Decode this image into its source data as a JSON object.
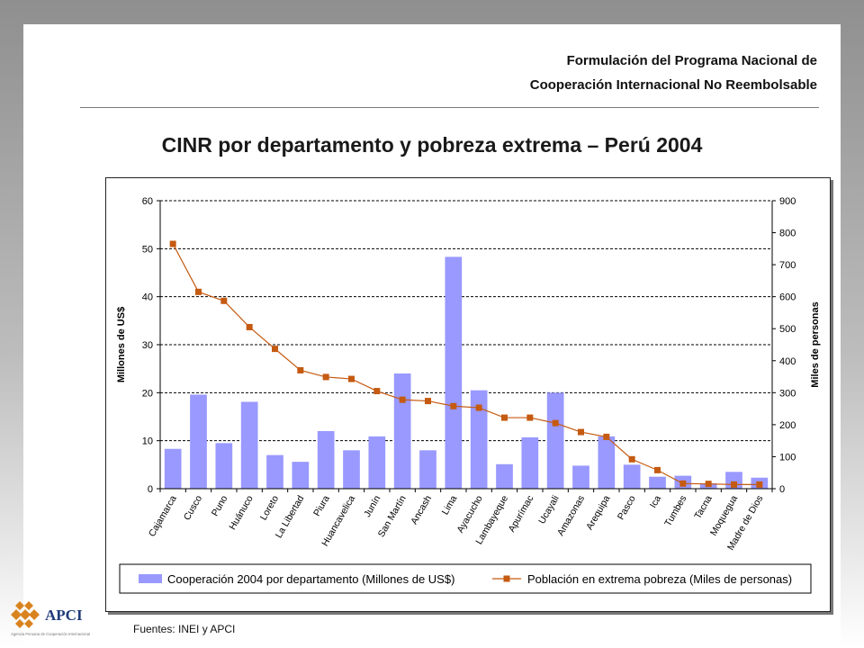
{
  "header": {
    "line1": "Formulación del Programa Nacional de",
    "line2": "Cooperación Internacional No Reembolsable"
  },
  "title": "CINR por departamento y pobreza extrema – Perú 2004",
  "footer": {
    "source": "Fuentes: INEI y APCI"
  },
  "logo": {
    "text": "APCI",
    "subtitle": "Agencia Peruana de Cooperación Internacional"
  },
  "colors": {
    "bar": "#9999ff",
    "line": "#c55a11",
    "marker": "#c55a11"
  },
  "chart_data": {
    "type": "bar",
    "ylabel": "Millones de US$",
    "y2label": "Miles de personas",
    "ylim": [
      0,
      60
    ],
    "y2lim": [
      0,
      900
    ],
    "yticks": [
      "0",
      "10",
      "20",
      "30",
      "40",
      "50",
      "60"
    ],
    "y2ticks": [
      "0",
      "100",
      "200",
      "300",
      "400",
      "500",
      "600",
      "700",
      "800",
      "900"
    ],
    "grid": "horizontal dashed",
    "legend_position": "bottom",
    "categories": [
      "Cajamarca",
      "Cusco",
      "Puno",
      "Huánuco",
      "Loreto",
      "La Libertad",
      "Piura",
      "Huancavelica",
      "Junín",
      "San Martín",
      "Ancash",
      "Lima",
      "Ayacucho",
      "Lambayeque",
      "Apurímac",
      "Ucayali",
      "Amazonas",
      "Arequipa",
      "Pasco",
      "Ica",
      "Tumbes",
      "Tacna",
      "Moquegua",
      "Madre de Dios"
    ],
    "series": [
      {
        "name": "Cooperación 2004 por departamento (Millones de US$)",
        "type": "bar",
        "axis": "left",
        "values": [
          8.3,
          19.6,
          9.5,
          18.1,
          7.0,
          5.6,
          12.0,
          8.0,
          10.9,
          24.0,
          8.0,
          48.3,
          20.5,
          5.1,
          10.7,
          20.0,
          4.8,
          10.9,
          5.0,
          2.5,
          2.7,
          1.1,
          3.5,
          2.3
        ]
      },
      {
        "name": "Población en extrema pobreza (Miles de personas)",
        "type": "line",
        "axis": "right",
        "values": [
          765,
          615,
          587,
          505,
          437,
          370,
          349,
          343,
          305,
          278,
          274,
          258,
          253,
          222,
          222,
          205,
          177,
          162,
          92,
          58,
          16,
          15,
          13,
          13
        ]
      }
    ]
  }
}
